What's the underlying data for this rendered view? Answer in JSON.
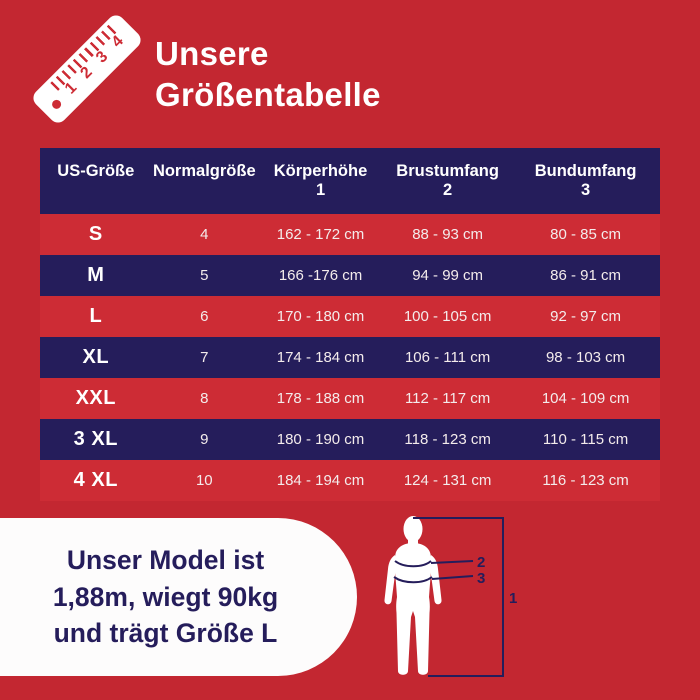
{
  "title": {
    "line1": "Unsere",
    "line2": "Größentabelle"
  },
  "ruler": {
    "numbers": [
      "1",
      "2",
      "3",
      "4"
    ]
  },
  "table": {
    "headers": [
      {
        "label": "US-Größe",
        "sub": ""
      },
      {
        "label": "Normalgröße",
        "sub": ""
      },
      {
        "label": "Körperhöhe",
        "sub": "1"
      },
      {
        "label": "Brustumfang",
        "sub": "2"
      },
      {
        "label": "Bundumfang",
        "sub": "3"
      }
    ]
  },
  "chart_data": {
    "type": "table",
    "title": "Unsere Größentabelle",
    "columns": [
      "US-Größe",
      "Normalgröße",
      "Körperhöhe 1",
      "Brustumfang 2",
      "Bundumfang 3"
    ],
    "rows": [
      [
        "S",
        "4",
        "162 - 172 cm",
        "88 - 93 cm",
        "80 - 85 cm"
      ],
      [
        "M",
        "5",
        "166 -176 cm",
        "94 - 99 cm",
        "86 - 91 cm"
      ],
      [
        "L",
        "6",
        "170 - 180 cm",
        "100 - 105 cm",
        "92 - 97 cm"
      ],
      [
        "XL",
        "7",
        "174 - 184 cm",
        "106 - 111 cm",
        "98 - 103 cm"
      ],
      [
        "XXL",
        "8",
        "178 - 188 cm",
        "112 - 117 cm",
        "104 - 109 cm"
      ],
      [
        "3 XL",
        "9",
        "180 - 190 cm",
        "118 - 123 cm",
        "110 - 115 cm"
      ],
      [
        "4 XL",
        "10",
        "184 - 194 cm",
        "124 - 131 cm",
        "116 - 123 cm"
      ]
    ]
  },
  "model_note": {
    "line1": "Unser Model ist",
    "line2": "1,88m, wiegt 90kg",
    "line3": "und trägt Größe L"
  },
  "figure": {
    "height_label": "1",
    "chest_label": "2",
    "waist_label": "3"
  },
  "colors": {
    "background_red": "#c32731",
    "row_red": "#cd2c35",
    "navy": "#251d5b",
    "card_white": "#fdfcfc",
    "text_off_white": "#f4ecec"
  }
}
